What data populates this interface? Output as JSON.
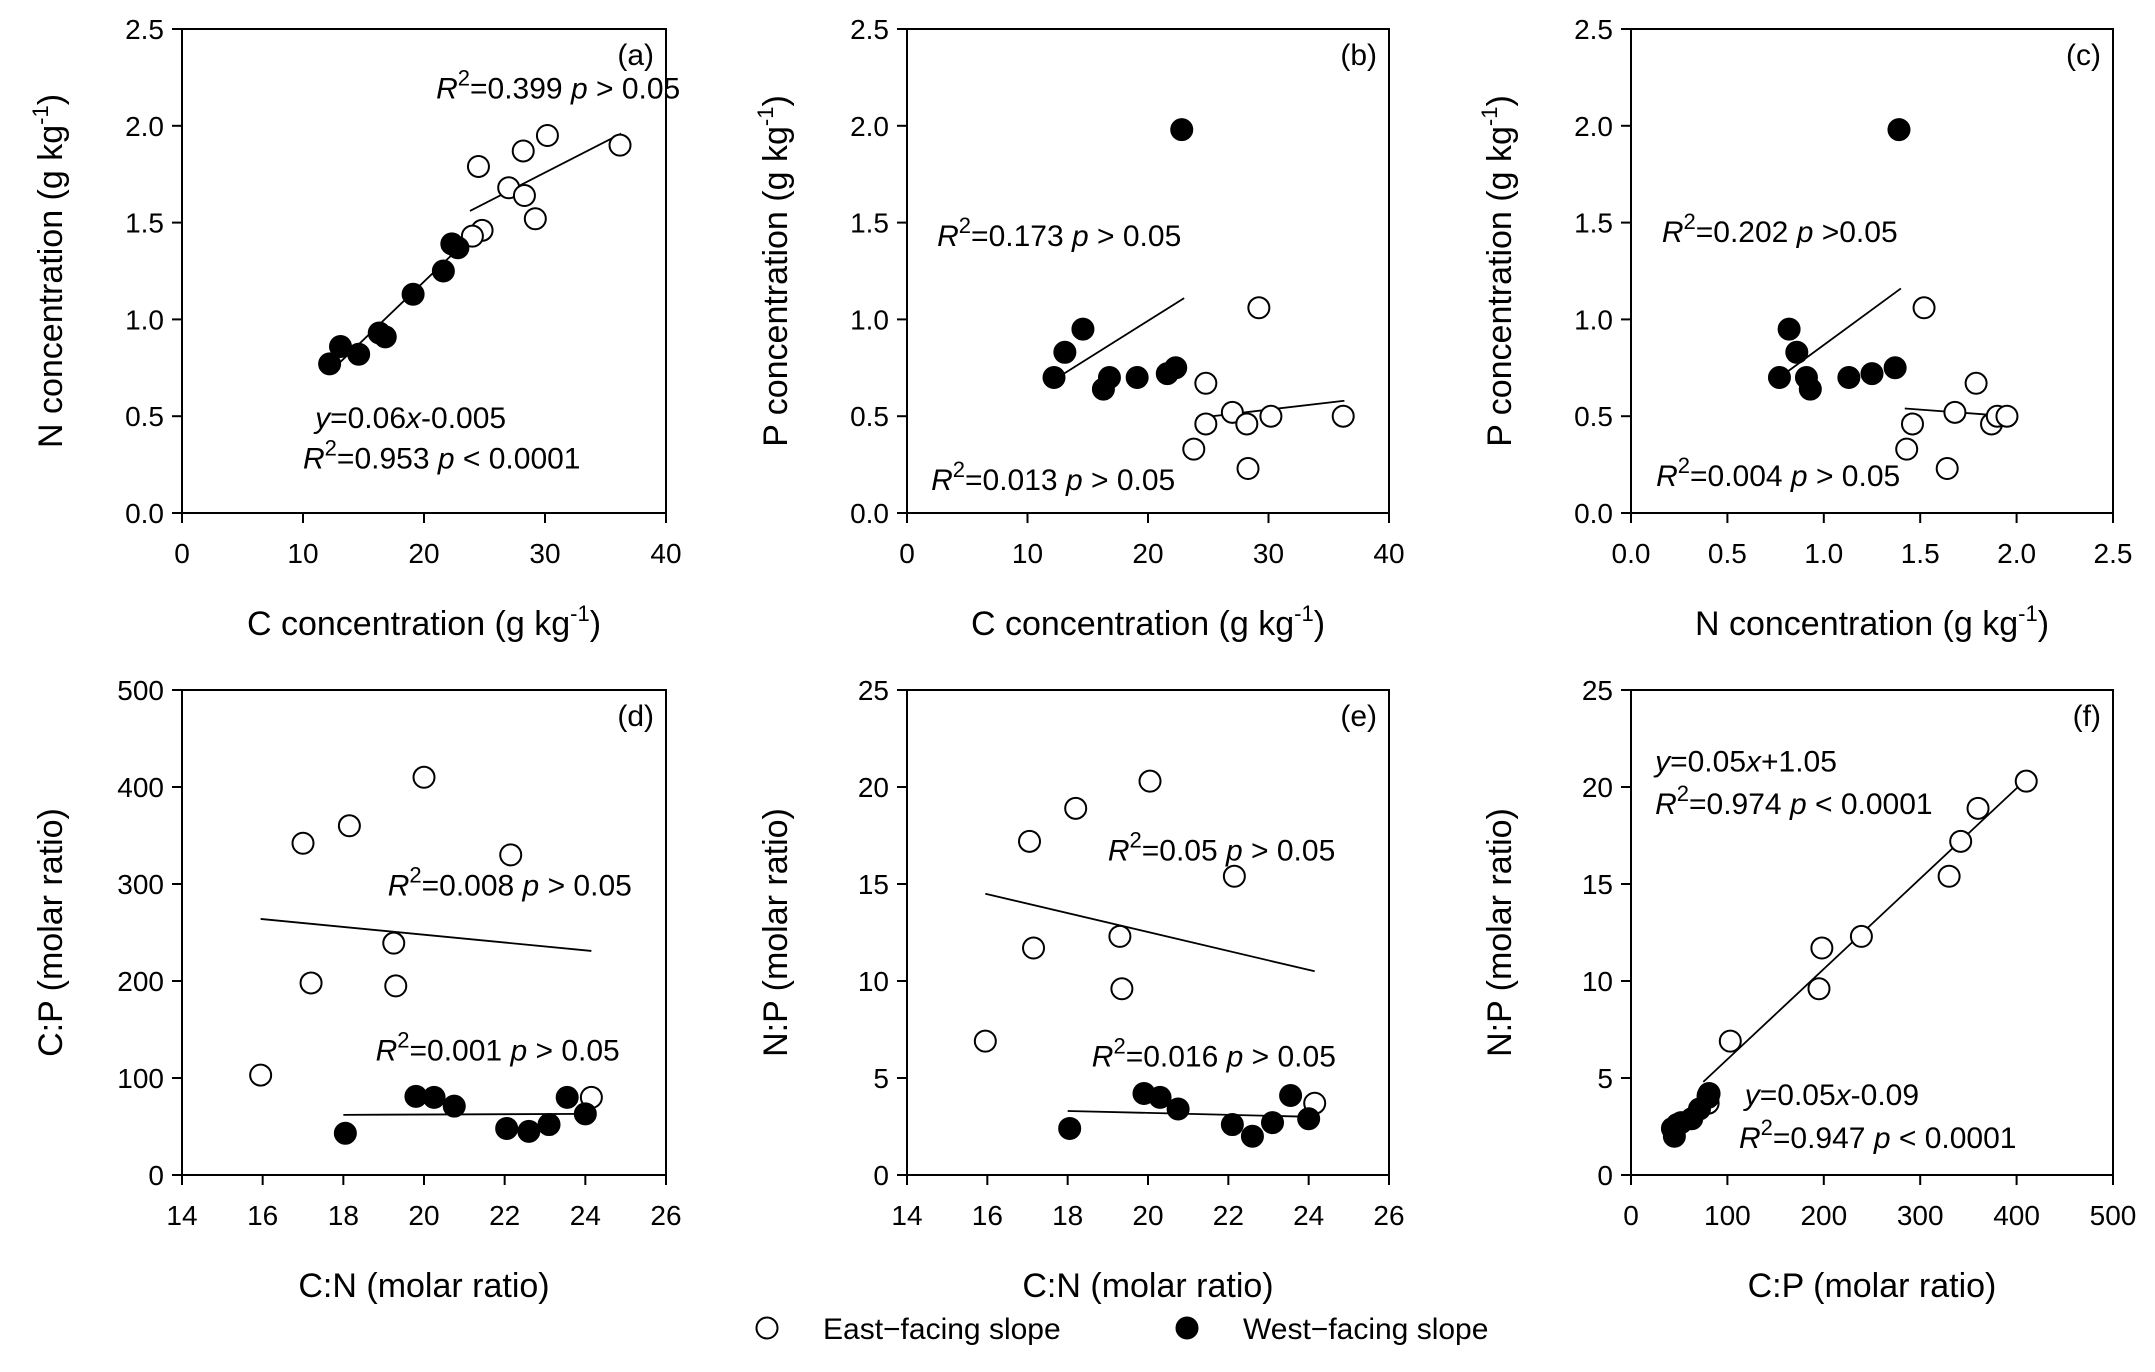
{
  "chart_data": [
    {
      "type": "scatter",
      "panel_label": "(a)",
      "xlabel": "C concentration (g kg",
      "xlabel_sup": "-1",
      "xlabel_end": ")",
      "ylabel": "N concentration (g kg",
      "ylabel_sup": "-1",
      "ylabel_end": ")",
      "xlim": [
        0,
        40
      ],
      "ylim": [
        0,
        2.5
      ],
      "xticks": [
        "0",
        "10",
        "20",
        "30",
        "40"
      ],
      "yticks": [
        "0.0",
        "0.5",
        "1.0",
        "1.5",
        "2.0",
        "2.5"
      ],
      "series": [
        {
          "name": "East-facing slope",
          "fill": "open",
          "x": [
            24.5,
            24.8,
            27.0,
            28.3,
            29.2,
            30.2,
            36.2,
            28.2,
            24.0
          ],
          "y": [
            1.79,
            1.46,
            1.68,
            1.64,
            1.52,
            1.95,
            1.9,
            1.87,
            1.43
          ]
        },
        {
          "name": "West-facing slope",
          "fill": "filled",
          "x": [
            12.2,
            13.1,
            14.6,
            16.3,
            16.8,
            19.1,
            21.6,
            22.3,
            22.8
          ],
          "y": [
            0.77,
            0.86,
            0.82,
            0.93,
            0.91,
            1.13,
            1.25,
            1.39,
            1.37
          ]
        }
      ],
      "fits": [
        {
          "x": [
            12.0,
            23.0
          ],
          "y": [
            0.715,
            1.375
          ]
        },
        {
          "x": [
            23.8,
            36.3
          ],
          "y": [
            1.56,
            1.96
          ]
        }
      ],
      "annotations": [
        {
          "tx": 21,
          "ty": 2.14,
          "parts": [
            {
              "t": "R",
              "i": true
            },
            {
              "t": "2",
              "sup": true
            },
            {
              "t": "=0.399  "
            },
            {
              "t": "p",
              "i": true
            },
            {
              "t": " > 0.05"
            }
          ]
        },
        {
          "tx": 11,
          "ty": 0.44,
          "parts": [
            {
              "t": "y",
              "i": true
            },
            {
              "t": "=0.06"
            },
            {
              "t": "x",
              "i": true
            },
            {
              "t": "-0.005"
            }
          ]
        },
        {
          "tx": 10,
          "ty": 0.23,
          "parts": [
            {
              "t": "R",
              "i": true
            },
            {
              "t": "2",
              "sup": true
            },
            {
              "t": "=0.953  "
            },
            {
              "t": "p",
              "i": true
            },
            {
              "t": " < 0.0001"
            }
          ]
        }
      ]
    },
    {
      "type": "scatter",
      "panel_label": "(b)",
      "xlabel": "C concentration (g kg",
      "xlabel_sup": "-1",
      "xlabel_end": ")",
      "ylabel": "P concentration (g kg",
      "ylabel_sup": "-1",
      "ylabel_end": ")",
      "xlim": [
        0,
        40
      ],
      "ylim": [
        0,
        2.5
      ],
      "xticks": [
        "0",
        "10",
        "20",
        "30",
        "40"
      ],
      "yticks": [
        "0.0",
        "0.5",
        "1.0",
        "1.5",
        "2.0",
        "2.5"
      ],
      "series": [
        {
          "name": "East-facing slope",
          "fill": "open",
          "x": [
            24.8,
            23.8,
            24.8,
            27.0,
            28.2,
            28.3,
            29.2,
            30.2,
            36.2
          ],
          "y": [
            0.67,
            0.33,
            0.46,
            0.52,
            0.46,
            0.23,
            1.06,
            0.5,
            0.5
          ]
        },
        {
          "name": "West-facing slope",
          "fill": "filled",
          "x": [
            12.2,
            13.1,
            14.6,
            16.3,
            16.8,
            19.1,
            21.6,
            22.3,
            22.8
          ],
          "y": [
            0.7,
            0.83,
            0.95,
            0.64,
            0.7,
            0.7,
            0.72,
            0.75,
            1.98
          ]
        }
      ],
      "fits": [
        {
          "x": [
            12.0,
            23.0
          ],
          "y": [
            0.68,
            1.11
          ]
        },
        {
          "x": [
            24.0,
            36.3
          ],
          "y": [
            0.49,
            0.58
          ]
        }
      ],
      "annotations": [
        {
          "tx": 2.5,
          "ty": 1.38,
          "parts": [
            {
              "t": "R",
              "i": true
            },
            {
              "t": "2",
              "sup": true
            },
            {
              "t": "=0.173  "
            },
            {
              "t": "p",
              "i": true
            },
            {
              "t": " > 0.05"
            }
          ]
        },
        {
          "tx": 2,
          "ty": 0.12,
          "parts": [
            {
              "t": "R",
              "i": true
            },
            {
              "t": "2",
              "sup": true
            },
            {
              "t": "=0.013  "
            },
            {
              "t": "p",
              "i": true
            },
            {
              "t": " > 0.05"
            }
          ]
        }
      ]
    },
    {
      "type": "scatter",
      "panel_label": "(c)",
      "xlabel": "N concentration (g kg",
      "xlabel_sup": "-1",
      "xlabel_end": ")",
      "ylabel": "P concentration (g kg",
      "ylabel_sup": "-1",
      "ylabel_end": ")",
      "xlim": [
        0,
        2.5
      ],
      "ylim": [
        0,
        2.5
      ],
      "xticks": [
        "0.0",
        "0.5",
        "1.0",
        "1.5",
        "2.0",
        "2.5"
      ],
      "yticks": [
        "0.0",
        "0.5",
        "1.0",
        "1.5",
        "2.0",
        "2.5"
      ],
      "series": [
        {
          "name": "East-facing slope",
          "fill": "open",
          "x": [
            1.43,
            1.46,
            1.52,
            1.64,
            1.68,
            1.79,
            1.87,
            1.9,
            1.95
          ],
          "y": [
            0.33,
            0.46,
            1.06,
            0.23,
            0.52,
            0.67,
            0.46,
            0.5,
            0.5
          ]
        },
        {
          "name": "West-facing slope",
          "fill": "filled",
          "x": [
            0.77,
            0.82,
            0.86,
            0.91,
            0.93,
            1.13,
            1.25,
            1.37,
            1.39
          ],
          "y": [
            0.7,
            0.95,
            0.83,
            0.7,
            0.64,
            0.7,
            0.72,
            0.75,
            1.98
          ]
        }
      ],
      "fits": [
        {
          "x": [
            0.77,
            1.4
          ],
          "y": [
            0.7,
            1.16
          ]
        },
        {
          "x": [
            1.42,
            1.96
          ],
          "y": [
            0.54,
            0.5
          ]
        }
      ],
      "annotations": [
        {
          "tx": 0.16,
          "ty": 1.4,
          "parts": [
            {
              "t": "R",
              "i": true
            },
            {
              "t": "2",
              "sup": true
            },
            {
              "t": "=0.202  "
            },
            {
              "t": "p",
              "i": true
            },
            {
              "t": " >0.05"
            }
          ]
        },
        {
          "tx": 0.13,
          "ty": 0.14,
          "parts": [
            {
              "t": "R",
              "i": true
            },
            {
              "t": "2",
              "sup": true
            },
            {
              "t": "=0.004  "
            },
            {
              "t": "p",
              "i": true
            },
            {
              "t": " > 0.05"
            }
          ]
        }
      ]
    },
    {
      "type": "scatter",
      "panel_label": "(d)",
      "xlabel": "C:N (molar ratio)",
      "ylabel": "C:P (molar ratio)",
      "xlim": [
        14,
        26
      ],
      "ylim": [
        0,
        500
      ],
      "xticks": [
        "14",
        "16",
        "18",
        "20",
        "22",
        "24",
        "26"
      ],
      "yticks": [
        "0",
        "100",
        "200",
        "300",
        "400",
        "500"
      ],
      "series": [
        {
          "name": "East-facing slope",
          "fill": "open",
          "x": [
            15.95,
            17.0,
            17.2,
            18.15,
            19.25,
            19.3,
            20.0,
            22.15,
            24.15
          ],
          "y": [
            103,
            342,
            198,
            360,
            239,
            195,
            410,
            330,
            80
          ]
        },
        {
          "name": "West-facing slope",
          "fill": "filled",
          "x": [
            18.05,
            19.8,
            20.25,
            20.75,
            22.05,
            22.6,
            23.1,
            23.55,
            24.0
          ],
          "y": [
            43,
            81,
            80,
            71,
            48,
            45,
            52,
            80,
            63
          ]
        }
      ],
      "fits": [
        {
          "x": [
            15.95,
            24.15
          ],
          "y": [
            264,
            231
          ]
        },
        {
          "x": [
            18.0,
            24.05
          ],
          "y": [
            62,
            63
          ]
        }
      ],
      "annotations": [
        {
          "tx": 19.1,
          "ty": 288,
          "parts": [
            {
              "t": "R",
              "i": true
            },
            {
              "t": "2",
              "sup": true
            },
            {
              "t": "=0.008  "
            },
            {
              "t": "p",
              "i": true
            },
            {
              "t": " > 0.05"
            }
          ]
        },
        {
          "tx": 18.8,
          "ty": 118,
          "parts": [
            {
              "t": "R",
              "i": true
            },
            {
              "t": "2",
              "sup": true
            },
            {
              "t": "=0.001  "
            },
            {
              "t": "p",
              "i": true
            },
            {
              "t": " > 0.05"
            }
          ]
        }
      ]
    },
    {
      "type": "scatter",
      "panel_label": "(e)",
      "xlabel": "C:N (molar ratio)",
      "ylabel": "N:P (molar ratio)",
      "xlim": [
        14,
        26
      ],
      "ylim": [
        0,
        25
      ],
      "xticks": [
        "14",
        "16",
        "18",
        "20",
        "22",
        "24",
        "26"
      ],
      "yticks": [
        "0",
        "5",
        "10",
        "15",
        "20",
        "25"
      ],
      "series": [
        {
          "name": "East-facing slope",
          "fill": "open",
          "x": [
            15.95,
            17.05,
            17.15,
            18.2,
            19.3,
            19.35,
            20.05,
            22.15,
            24.15
          ],
          "y": [
            6.9,
            17.2,
            11.7,
            18.9,
            12.3,
            9.6,
            20.3,
            15.4,
            3.7
          ]
        },
        {
          "name": "West-facing slope",
          "fill": "filled",
          "x": [
            18.05,
            19.9,
            20.3,
            20.75,
            22.1,
            22.6,
            23.1,
            23.55,
            24.0
          ],
          "y": [
            2.4,
            4.2,
            4.0,
            3.4,
            2.6,
            2.0,
            2.7,
            4.1,
            2.9
          ]
        }
      ],
      "fits": [
        {
          "x": [
            15.95,
            24.15
          ],
          "y": [
            14.5,
            10.5
          ]
        },
        {
          "x": [
            18.0,
            24.05
          ],
          "y": [
            3.3,
            3.0
          ]
        }
      ],
      "annotations": [
        {
          "tx": 19.0,
          "ty": 16.2,
          "parts": [
            {
              "t": "R",
              "i": true
            },
            {
              "t": "2",
              "sup": true
            },
            {
              "t": "=0.05  "
            },
            {
              "t": "p",
              "i": true
            },
            {
              "t": " > 0.05"
            }
          ]
        },
        {
          "tx": 18.6,
          "ty": 5.6,
          "parts": [
            {
              "t": "R",
              "i": true
            },
            {
              "t": "2",
              "sup": true
            },
            {
              "t": "=0.016  "
            },
            {
              "t": "p",
              "i": true
            },
            {
              "t": " > 0.05"
            }
          ]
        }
      ]
    },
    {
      "type": "scatter",
      "panel_label": "(f)",
      "xlabel": "C:P (molar ratio)",
      "ylabel": "N:P (molar ratio)",
      "xlim": [
        0,
        500
      ],
      "ylim": [
        0,
        25
      ],
      "xticks": [
        "0",
        "100",
        "200",
        "300",
        "400",
        "500"
      ],
      "yticks": [
        "0",
        "5",
        "10",
        "15",
        "20",
        "25"
      ],
      "series": [
        {
          "name": "East-facing slope",
          "fill": "open",
          "x": [
            80,
            103,
            195,
            198,
            239,
            330,
            342,
            360,
            410
          ],
          "y": [
            3.7,
            6.9,
            9.6,
            11.7,
            12.3,
            15.4,
            17.2,
            18.9,
            20.3
          ]
        },
        {
          "name": "West-facing slope",
          "fill": "filled",
          "x": [
            43,
            45,
            48,
            52,
            63,
            71,
            80,
            80,
            81
          ],
          "y": [
            2.4,
            2.0,
            2.6,
            2.7,
            2.9,
            3.4,
            4.1,
            4.0,
            4.2
          ]
        }
      ],
      "fits": [
        {
          "x": [
            43,
            82
          ],
          "y": [
            1.8,
            4.3
          ]
        },
        {
          "x": [
            75,
            410
          ],
          "y": [
            4.8,
            20.4
          ]
        }
      ],
      "annotations": [
        {
          "tx": 25,
          "ty": 20.8,
          "parts": [
            {
              "t": "y",
              "i": true
            },
            {
              "t": "=0.05"
            },
            {
              "t": "x",
              "i": true
            },
            {
              "t": "+1.05"
            }
          ]
        },
        {
          "tx": 25,
          "ty": 18.6,
          "parts": [
            {
              "t": "R",
              "i": true
            },
            {
              "t": "2",
              "sup": true
            },
            {
              "t": "=0.974  "
            },
            {
              "t": "p",
              "i": true
            },
            {
              "t": " < 0.0001"
            }
          ]
        },
        {
          "tx": 118,
          "ty": 3.6,
          "parts": [
            {
              "t": "y",
              "i": true
            },
            {
              "t": "=0.05"
            },
            {
              "t": "x",
              "i": true
            },
            {
              "t": "-0.09"
            }
          ]
        },
        {
          "tx": 112,
          "ty": 1.4,
          "parts": [
            {
              "t": "R",
              "i": true
            },
            {
              "t": "2",
              "sup": true
            },
            {
              "t": "=0.947  "
            },
            {
              "t": "p",
              "i": true
            },
            {
              "t": " < 0.0001"
            }
          ]
        }
      ]
    }
  ],
  "legend": {
    "east_label": "East−facing slope",
    "west_label": "West−facing slope"
  }
}
